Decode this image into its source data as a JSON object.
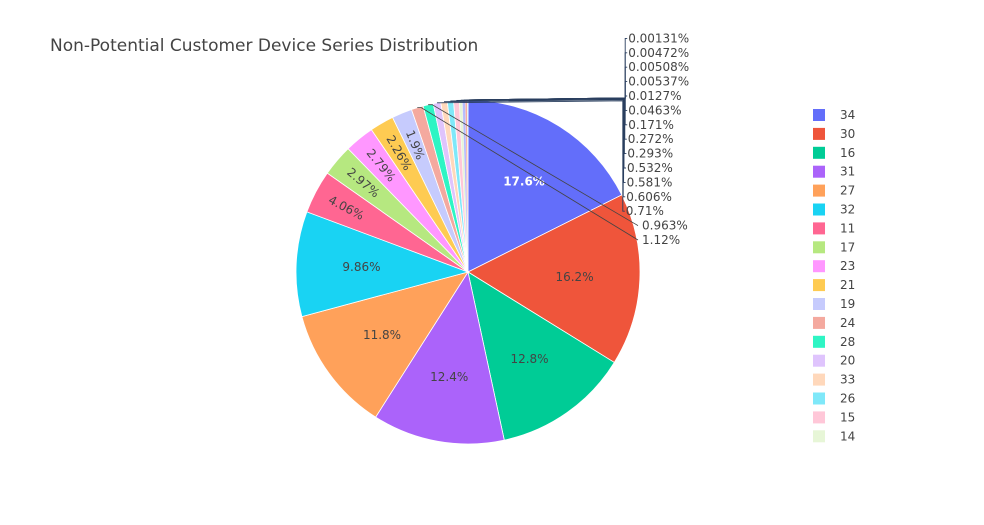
{
  "chart_data": {
    "type": "pie",
    "title": "Non-Potential Customer Device Series Distribution",
    "legend_position": "right",
    "slices": [
      {
        "label": "34",
        "value": 17.6,
        "text": "17.6%",
        "color": "#636efa"
      },
      {
        "label": "30",
        "value": 16.2,
        "text": "16.2%",
        "color": "#EF553B"
      },
      {
        "label": "16",
        "value": 12.8,
        "text": "12.8%",
        "color": "#00cc96"
      },
      {
        "label": "31",
        "value": 12.4,
        "text": "12.4%",
        "color": "#ab63fa"
      },
      {
        "label": "27",
        "value": 11.8,
        "text": "11.8%",
        "color": "#FFA15A"
      },
      {
        "label": "32",
        "value": 9.86,
        "text": "9.86%",
        "color": "#19d3f3"
      },
      {
        "label": "11",
        "value": 4.06,
        "text": "4.06%",
        "color": "#FF6692"
      },
      {
        "label": "17",
        "value": 2.97,
        "text": "2.97%",
        "color": "#B6E880"
      },
      {
        "label": "23",
        "value": 2.79,
        "text": "2.79%",
        "color": "#FF97FF"
      },
      {
        "label": "21",
        "value": 2.26,
        "text": "2.26%",
        "color": "#FECB52"
      },
      {
        "label": "19",
        "value": 1.9,
        "text": "1.9%",
        "color": "#c6cbfd"
      },
      {
        "label": "24",
        "value": 1.12,
        "text": "1.12%",
        "color": "#f4a99f"
      },
      {
        "label": "28",
        "value": 0.963,
        "text": "0.963%",
        "color": "#2ef5c4"
      },
      {
        "label": "20",
        "value": 0.71,
        "text": "0.71%",
        "color": "#dfc4fd"
      },
      {
        "label": "33",
        "value": 0.606,
        "text": "0.606%",
        "color": "#ffd8bb"
      },
      {
        "label": "26",
        "value": 0.581,
        "text": "0.581%",
        "color": "#7fe8f9"
      },
      {
        "label": "15",
        "value": 0.532,
        "text": "0.532%",
        "color": "#ffc7d8"
      },
      {
        "label": "14",
        "value": 0.293,
        "text": "0.293%",
        "color": "#e7f6d7"
      },
      {
        "label": "",
        "value": 0.272,
        "text": "0.272%",
        "color": "#b7bcfc"
      },
      {
        "label": "",
        "value": 0.171,
        "text": "0.171%",
        "color": "#f7ad9f"
      },
      {
        "label": "",
        "value": 0.0463,
        "text": "0.0463%",
        "color": "#7fe4ca"
      },
      {
        "label": "",
        "value": 0.0127,
        "text": "0.0127%",
        "color": "#d4b1fc"
      },
      {
        "label": "",
        "value": 0.00537,
        "text": "0.00537%",
        "color": "#ffd0ac"
      },
      {
        "label": "",
        "value": 0.00508,
        "text": "0.00508%",
        "color": "#8ce9f8"
      },
      {
        "label": "",
        "value": 0.00472,
        "text": "0.00472%",
        "color": "#ffb2c8"
      },
      {
        "label": "",
        "value": 0.00131,
        "text": "0.00131%",
        "color": "#d9f2bf"
      }
    ],
    "legend_entries": [
      "34",
      "30",
      "16",
      "31",
      "27",
      "32",
      "11",
      "17",
      "23",
      "21",
      "19",
      "24",
      "28",
      "20",
      "33",
      "26",
      "15",
      "14"
    ]
  }
}
